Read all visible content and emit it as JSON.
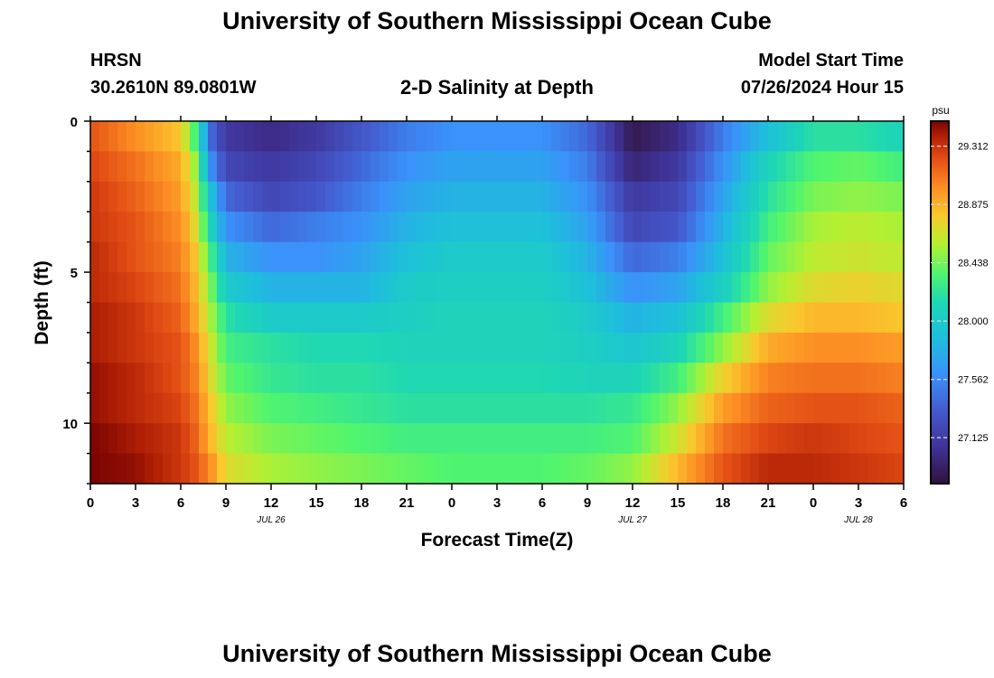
{
  "header": {
    "title": "University of Southern Mississippi Ocean Cube",
    "station": "HRSN",
    "coords": "30.2610N  89.0801W",
    "plot_title": "2-D Salinity at Depth",
    "model_label": "Model Start Time",
    "model_time": "07/26/2024 Hour 15"
  },
  "footer": {
    "title": "University of Southern Mississippi Ocean Cube"
  },
  "chart_data": {
    "type": "heatmap",
    "title": "2-D Salinity at Depth",
    "xlabel": "Forecast Time(Z)",
    "ylabel": "Depth (ft)",
    "x_tick_labels": [
      "0",
      "3",
      "6",
      "9",
      "12",
      "15",
      "18",
      "21",
      "0",
      "3",
      "6",
      "9",
      "12",
      "15",
      "18",
      "21",
      "0",
      "3",
      "6"
    ],
    "x_range_hours": [
      0,
      54
    ],
    "date_labels": [
      {
        "hour": 12,
        "label": "JUL 26"
      },
      {
        "hour": 36,
        "label": "JUL 27"
      },
      {
        "hour": 51,
        "label": "JUL 28"
      }
    ],
    "y_tick_labels": [
      "0",
      "5",
      "10"
    ],
    "y_range_ft": [
      0,
      12
    ],
    "colorbar": {
      "unit": "psu",
      "ticks": [
        "29.312",
        "28.875",
        "28.438",
        "28.000",
        "27.562",
        "27.125"
      ],
      "tick_values": [
        29.312,
        28.875,
        28.438,
        28.0,
        27.562,
        27.125
      ],
      "range": [
        26.78,
        29.5
      ]
    },
    "depth_levels_ft": [
      0.5,
      1.5,
      2.5,
      3.5,
      4.5,
      5.5,
      6.5,
      7.5,
      8.5,
      9.5,
      10.5,
      11.5
    ],
    "time_hours": [
      0,
      3,
      6,
      7,
      8,
      9,
      12,
      15,
      18,
      21,
      24,
      27,
      30,
      33,
      36,
      39,
      42,
      45,
      48,
      51,
      54
    ],
    "salinity": [
      [
        29.2,
        29.0,
        28.8,
        28.3,
        27.4,
        27.1,
        27.0,
        27.1,
        27.3,
        27.5,
        27.6,
        27.6,
        27.6,
        27.4,
        26.85,
        27.0,
        27.5,
        27.9,
        28.2,
        28.2,
        28.1
      ],
      [
        29.25,
        29.1,
        28.9,
        28.5,
        27.6,
        27.2,
        27.1,
        27.2,
        27.4,
        27.6,
        27.7,
        27.7,
        27.7,
        27.5,
        26.95,
        27.1,
        27.6,
        28.1,
        28.35,
        28.4,
        28.3
      ],
      [
        29.3,
        29.15,
        28.95,
        28.6,
        27.9,
        27.4,
        27.2,
        27.3,
        27.5,
        27.7,
        27.8,
        27.8,
        27.8,
        27.6,
        27.1,
        27.2,
        27.7,
        28.2,
        28.45,
        28.5,
        28.45
      ],
      [
        29.3,
        29.2,
        29.0,
        28.7,
        28.1,
        27.6,
        27.4,
        27.5,
        27.6,
        27.8,
        27.9,
        27.9,
        27.9,
        27.7,
        27.2,
        27.3,
        27.8,
        28.3,
        28.55,
        28.6,
        28.55
      ],
      [
        29.35,
        29.2,
        29.05,
        28.8,
        28.3,
        27.8,
        27.6,
        27.6,
        27.7,
        27.9,
        28.0,
        28.0,
        28.0,
        27.8,
        27.4,
        27.5,
        27.9,
        28.4,
        28.6,
        28.65,
        28.6
      ],
      [
        29.35,
        29.25,
        29.1,
        28.85,
        28.45,
        28.0,
        27.8,
        27.8,
        27.8,
        28.0,
        28.05,
        28.05,
        28.05,
        27.9,
        27.6,
        27.7,
        28.05,
        28.5,
        28.7,
        28.75,
        28.7
      ],
      [
        29.4,
        29.3,
        29.15,
        28.9,
        28.55,
        28.2,
        28.0,
        28.0,
        28.0,
        28.05,
        28.1,
        28.1,
        28.1,
        28.0,
        27.8,
        27.9,
        28.3,
        28.7,
        28.85,
        28.85,
        28.8
      ],
      [
        29.4,
        29.3,
        29.2,
        29.0,
        28.65,
        28.3,
        28.2,
        28.15,
        28.15,
        28.1,
        28.1,
        28.1,
        28.1,
        28.05,
        27.95,
        28.1,
        28.5,
        28.9,
        29.0,
        29.0,
        28.95
      ],
      [
        29.45,
        29.35,
        29.2,
        29.05,
        28.7,
        28.4,
        28.25,
        28.2,
        28.2,
        28.15,
        28.15,
        28.15,
        28.15,
        28.1,
        28.1,
        28.3,
        28.75,
        29.05,
        29.1,
        29.1,
        29.05
      ],
      [
        29.45,
        29.35,
        29.25,
        29.1,
        28.8,
        28.5,
        28.35,
        28.3,
        28.25,
        28.2,
        28.2,
        28.2,
        28.2,
        28.2,
        28.25,
        28.5,
        28.95,
        29.15,
        29.2,
        29.2,
        29.15
      ],
      [
        29.5,
        29.4,
        29.3,
        29.15,
        28.85,
        28.6,
        28.45,
        28.4,
        28.35,
        28.3,
        28.3,
        28.3,
        28.3,
        28.3,
        28.35,
        28.65,
        29.1,
        29.25,
        29.3,
        29.25,
        29.2
      ],
      [
        29.5,
        29.45,
        29.3,
        29.2,
        29.0,
        28.7,
        28.55,
        28.5,
        28.45,
        28.4,
        28.35,
        28.35,
        28.35,
        28.4,
        28.5,
        28.85,
        29.2,
        29.35,
        29.35,
        29.3,
        29.25
      ]
    ]
  }
}
